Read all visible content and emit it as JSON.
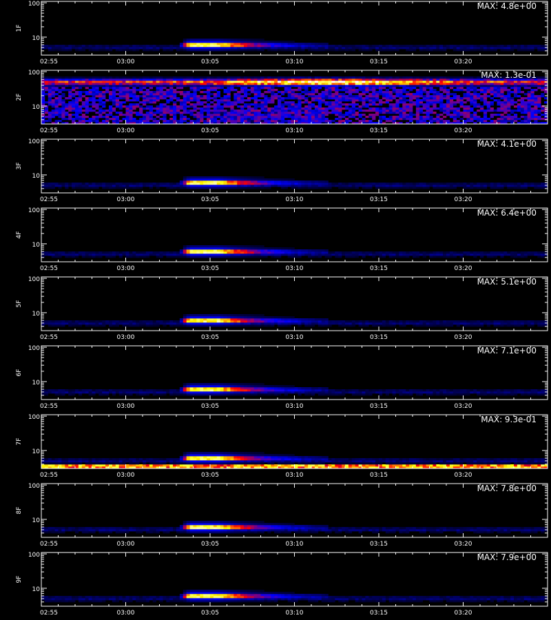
{
  "chart_data": {
    "type": "heatmap",
    "x_tick_labels": [
      "02:55",
      "03:00",
      "03:05",
      "03:10",
      "03:15",
      "03:20"
    ],
    "x_tick_minutes": [
      0,
      5,
      10,
      15,
      20,
      25
    ],
    "x_range_minutes": [
      0,
      30
    ],
    "y_scale": "log",
    "y_range": [
      3,
      110
    ],
    "y_tick_labels": [
      "10",
      "100"
    ],
    "y_tick_values": [
      10,
      100
    ],
    "xlabel": "",
    "colormap": [
      "#000000",
      "#0000ff",
      "#ff0000",
      "#ffff00",
      "#ffffff"
    ],
    "panels": [
      {
        "label": "1F",
        "max_label": "MAX: 4.8e+00",
        "pattern": "burst"
      },
      {
        "label": "2F",
        "max_label": "MAX: 1.3e-01",
        "pattern": "noisy-high"
      },
      {
        "label": "3F",
        "max_label": "MAX: 4.1e+00",
        "pattern": "burst"
      },
      {
        "label": "4F",
        "max_label": "MAX: 6.4e+00",
        "pattern": "burst"
      },
      {
        "label": "5F",
        "max_label": "MAX: 5.1e+00",
        "pattern": "burst"
      },
      {
        "label": "6F",
        "max_label": "MAX: 7.1e+00",
        "pattern": "burst"
      },
      {
        "label": "7F",
        "max_label": "MAX: 9.3e-01",
        "pattern": "burst-bottomband"
      },
      {
        "label": "8F",
        "max_label": "MAX: 7.8e+00",
        "pattern": "burst"
      },
      {
        "label": "9F",
        "max_label": "MAX: 7.9e+00",
        "pattern": "burst"
      }
    ]
  }
}
